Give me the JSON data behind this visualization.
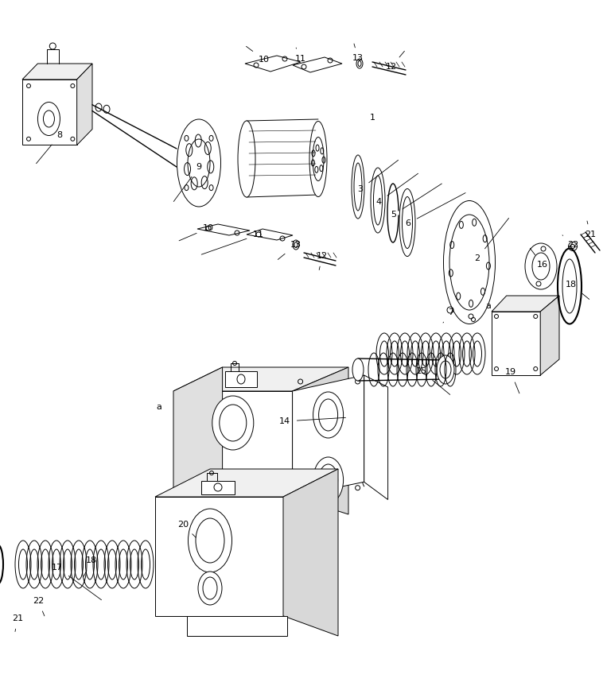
{
  "bg_color": "#ffffff",
  "line_color": "#000000",
  "fig_width": 7.58,
  "fig_height": 8.63,
  "dpi": 100
}
